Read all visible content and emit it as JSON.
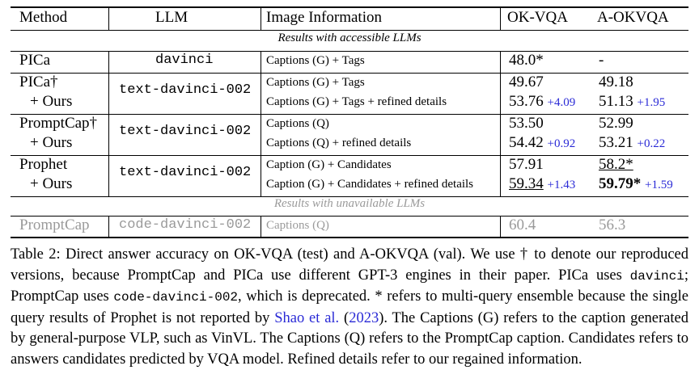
{
  "table": {
    "headers": [
      "Method",
      "LLM",
      "Image Information",
      "OK-VQA",
      "A-OKVQA"
    ],
    "section_accessible": "Results with accessible LLMs",
    "section_unavailable": "Results with unavailable LLMs",
    "rows": [
      {
        "method": "PICa",
        "llm": "davinci",
        "info": "Captions (G) + Tags",
        "ok": "48.0*",
        "ok_imp": "",
        "aok": "-",
        "aok_imp": ""
      },
      {
        "method": "PICa†",
        "llm": "text-davinci-002",
        "info": "Captions (G) + Tags",
        "ok": "49.67",
        "ok_imp": "",
        "aok": "49.18",
        "aok_imp": ""
      },
      {
        "method": "+ Ours",
        "llm": "",
        "info": "Captions (G) + Tags + refined details",
        "ok": "53.76",
        "ok_imp": "+4.09",
        "aok": "51.13",
        "aok_imp": "+1.95"
      },
      {
        "method": "PromptCap†",
        "llm": "text-davinci-002",
        "info": "Captions (Q)",
        "ok": "53.50",
        "ok_imp": "",
        "aok": "52.99",
        "aok_imp": ""
      },
      {
        "method": "+ Ours",
        "llm": "",
        "info": "Captions (Q) + refined details",
        "ok": "54.42",
        "ok_imp": "+0.92",
        "aok": "53.21",
        "aok_imp": "+0.22"
      },
      {
        "method": "Prophet",
        "llm": "text-davinci-002",
        "info": "Caption (G) + Candidates",
        "ok": "57.91",
        "ok_imp": "",
        "aok": "58.2*",
        "aok_imp": ""
      },
      {
        "method": "+ Ours",
        "llm": "",
        "info": "Caption (G) + Candidates + refined details",
        "ok": "59.34",
        "ok_imp": "+1.43",
        "aok": "59.79*",
        "aok_imp": "+1.59"
      },
      {
        "method": "PromptCap",
        "llm": "code-davinci-002",
        "info": "Captions (Q)",
        "ok": "60.4",
        "ok_imp": "",
        "aok": "56.3",
        "aok_imp": ""
      }
    ]
  },
  "caption": {
    "p1": "Table 2: Direct answer accuracy on OK-VQA (test) and A-OKVQA (val). We use † to denote our reproduced versions, because PromptCap and PICa use different GPT-3 engines in their paper. PICa uses ",
    "code1": "davinci",
    "p2": "; PromptCap uses ",
    "code2": "code-davinci-002",
    "p3": ", which is deprecated. * refers to multi-query ensemble because the single query results of Prophet is not reported by ",
    "cite": "Shao et al.",
    "p4": " (",
    "cite_year": "2023",
    "p5": "). The Captions (G) refers to the caption generated by general-purpose VLP, such as VinVL. The Captions (Q) refers to the PromptCap caption. Candidates refers to answers candidates predicted by VQA model. Refined details refer to our regained information."
  },
  "colors": {
    "improvement": "#2a2ad6",
    "unavailable": "#9a9a9a"
  }
}
